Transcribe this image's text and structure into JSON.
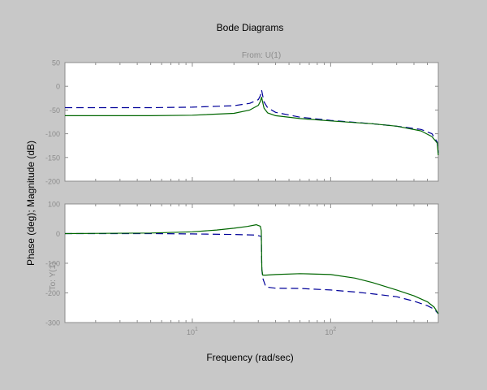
{
  "figure": {
    "background": "#c8c8c8",
    "axes_background": "#ffffff",
    "axis_color": "#8c8c8c"
  },
  "title": "Bode Diagrams",
  "input_label": "From: U(1)",
  "output_label": "To: Y(1)",
  "xlabel": "Frequency (rad/sec)",
  "ylabel": "Phase (deg); Magnitude (dB)",
  "chart_data": [
    {
      "type": "line",
      "panel": "magnitude",
      "xscale": "log",
      "xlim": [
        1.2,
        600
      ],
      "ylim": [
        -200,
        50
      ],
      "yticks": [
        50,
        0,
        -50,
        -100,
        -150,
        -200
      ],
      "ytick_labels": [
        "50",
        "0",
        "-50",
        "-100",
        "-150",
        "-200"
      ],
      "xticks": [
        10,
        100
      ],
      "xtick_labels": [],
      "series": [
        {
          "style": "dashed",
          "color": "#000099",
          "x": [
            1.2,
            5,
            10,
            20,
            26,
            30,
            31,
            31.7,
            32.3,
            33,
            35,
            40,
            60,
            100,
            200,
            300,
            450,
            540,
            590,
            600
          ],
          "y": [
            -45,
            -45,
            -44,
            -41,
            -36,
            -28,
            -20,
            -8,
            -20,
            -33,
            -45,
            -55,
            -65,
            -72,
            -79,
            -84,
            -91,
            -100,
            -118,
            -140
          ]
        },
        {
          "style": "solid",
          "color": "#006600",
          "x": [
            1.2,
            5,
            10,
            20,
            26,
            30,
            31,
            31.7,
            32.3,
            33,
            35,
            40,
            60,
            100,
            200,
            300,
            450,
            540,
            590,
            600
          ],
          "y": [
            -62,
            -62,
            -61,
            -57,
            -50,
            -40,
            -32,
            -23,
            -34,
            -46,
            -56,
            -62,
            -68,
            -73,
            -79,
            -84,
            -94,
            -106,
            -120,
            -145
          ]
        }
      ]
    },
    {
      "type": "line",
      "panel": "phase",
      "xscale": "log",
      "xlim": [
        1.2,
        600
      ],
      "ylim": [
        -300,
        100
      ],
      "yticks": [
        100,
        0,
        -100,
        -200,
        -300
      ],
      "ytick_labels": [
        "100",
        "0",
        "-100",
        "-200",
        "-300"
      ],
      "xticks": [
        10,
        100
      ],
      "xtick_labels": [
        "10^1",
        "10^2"
      ],
      "series": [
        {
          "style": "dashed",
          "color": "#000099",
          "x": [
            1.2,
            5,
            10,
            20,
            29,
            31.5,
            31.8,
            32.3,
            34,
            40,
            60,
            100,
            150,
            200,
            300,
            400,
            500,
            560,
            600
          ],
          "y": [
            0,
            0,
            -1,
            -3,
            -5,
            -10,
            -120,
            -150,
            -180,
            -184,
            -185,
            -190,
            -197,
            -203,
            -213,
            -228,
            -243,
            -255,
            -270
          ]
        },
        {
          "style": "solid",
          "color": "#006600",
          "x": [
            1.2,
            5,
            10,
            15,
            20,
            25,
            29,
            31,
            31.5,
            31.8,
            32.3,
            34,
            40,
            60,
            100,
            150,
            200,
            300,
            400,
            500,
            560,
            600
          ],
          "y": [
            0,
            2,
            6,
            12,
            18,
            24,
            30,
            25,
            10,
            -120,
            -140,
            -140,
            -138,
            -135,
            -138,
            -150,
            -165,
            -190,
            -210,
            -230,
            -248,
            -270
          ]
        }
      ]
    }
  ]
}
